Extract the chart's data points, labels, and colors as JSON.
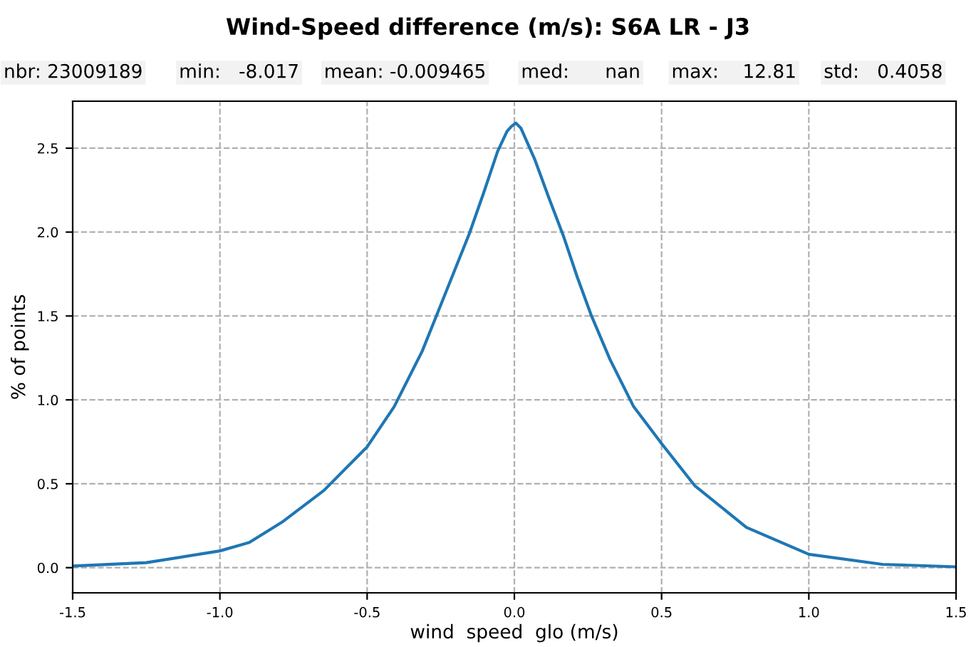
{
  "chart_data": {
    "type": "line",
    "title": "Wind-Speed difference (m/s): S6A LR - J3",
    "annotations": [
      "nbr: 23009189",
      "min:   -8.017",
      "mean: -0.009465",
      "med:      nan",
      "max:    12.81",
      "std:   0.4058"
    ],
    "xlabel": "wind  speed  glo (m/s)",
    "ylabel": "% of points",
    "series": [
      {
        "color": "#1f77b4",
        "x": [
          -1.5,
          -1.25,
          -1.0,
          -0.9,
          -0.79,
          -0.647,
          -0.5,
          -0.408,
          -0.313,
          -0.265,
          -0.201,
          -0.153,
          -0.105,
          -0.057,
          -0.025,
          -0.01,
          0.005,
          0.022,
          0.07,
          0.118,
          0.166,
          0.214,
          0.262,
          0.325,
          0.405,
          0.5,
          0.612,
          0.788,
          1.0,
          1.25,
          1.5
        ],
        "values": [
          0.01,
          0.03,
          0.1,
          0.15,
          0.27,
          0.46,
          0.72,
          0.96,
          1.29,
          1.5,
          1.78,
          1.99,
          2.23,
          2.48,
          2.6,
          2.63,
          2.65,
          2.62,
          2.43,
          2.2,
          1.98,
          1.73,
          1.5,
          1.24,
          0.96,
          0.74,
          0.49,
          0.24,
          0.08,
          0.02,
          0.005
        ]
      }
    ],
    "xlim": [
      -1.5,
      1.5
    ],
    "xticks": [
      -1.5,
      {
        "value": -1,
        "label": "-1.0"
      },
      -0.5,
      {
        "value": 0,
        "label": "0.0"
      },
      0.5,
      {
        "value": 1,
        "label": "1.0"
      },
      1.5
    ],
    "ylim": [
      -0.15,
      2.78
    ],
    "yticks": [
      {
        "value": 0,
        "label": "0.0"
      },
      0.5,
      {
        "value": 1,
        "label": "1.0"
      },
      1.5,
      {
        "value": 2,
        "label": "2.0"
      },
      2.5
    ],
    "grid": true,
    "line_style": "solid",
    "marker": "none"
  }
}
